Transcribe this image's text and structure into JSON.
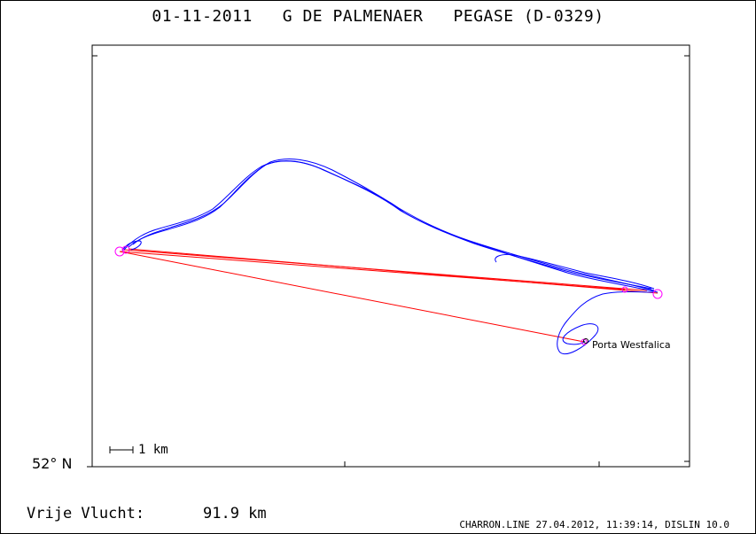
{
  "title": "01-11-2011   G DE PALMENAER   PEGASE (D-0329)",
  "latitude_label": "52° N",
  "scale_label": "1 km",
  "place_label": "Porta Westfalica",
  "stats": {
    "label": "Vrije Vlucht:",
    "value": "91.9 km"
  },
  "footer": "CHARRON.LINE 27.04.2012, 11:39:14, DISLIN 10.0",
  "colors": {
    "track": "#0000ff",
    "task_line": "#ff0000",
    "turnpoint": "#ff00ff",
    "frame": "#000000"
  }
}
